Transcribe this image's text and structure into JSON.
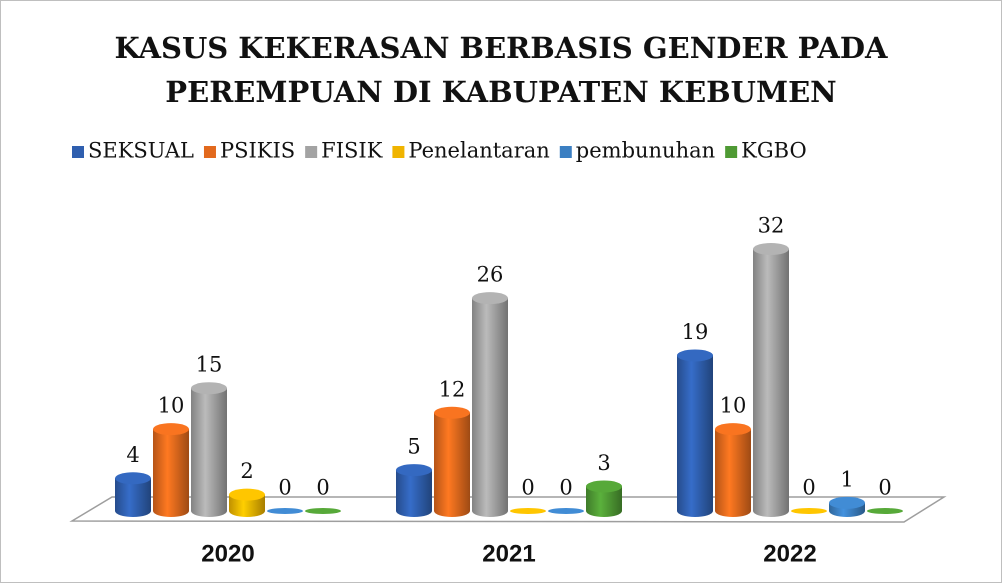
{
  "chart_data": {
    "type": "bar3d",
    "title": [
      "KASUS KEKERASAN BERBASIS GENDER PADA",
      "PEREMPUAN DI KABUPATEN KEBUMEN"
    ],
    "categories": [
      "2020",
      "2021",
      "2022"
    ],
    "series": [
      {
        "name": "SEKSUAL",
        "color": "#2f5faf",
        "values": [
          4,
          5,
          19
        ]
      },
      {
        "name": "PSIKIS",
        "color": "#e2691d",
        "values": [
          10,
          12,
          10
        ]
      },
      {
        "name": "FISIK",
        "color": "#a3a3a3",
        "values": [
          15,
          26,
          32
        ]
      },
      {
        "name": "Penelantaran",
        "color": "#f0b400",
        "values": [
          2,
          0,
          0
        ]
      },
      {
        "name": "pembunuhan",
        "color": "#3b7fc2",
        "values": [
          0,
          0,
          1
        ]
      },
      {
        "name": "KGBO",
        "color": "#4f9a34",
        "values": [
          0,
          3,
          0
        ]
      }
    ],
    "legend": "top"
  }
}
